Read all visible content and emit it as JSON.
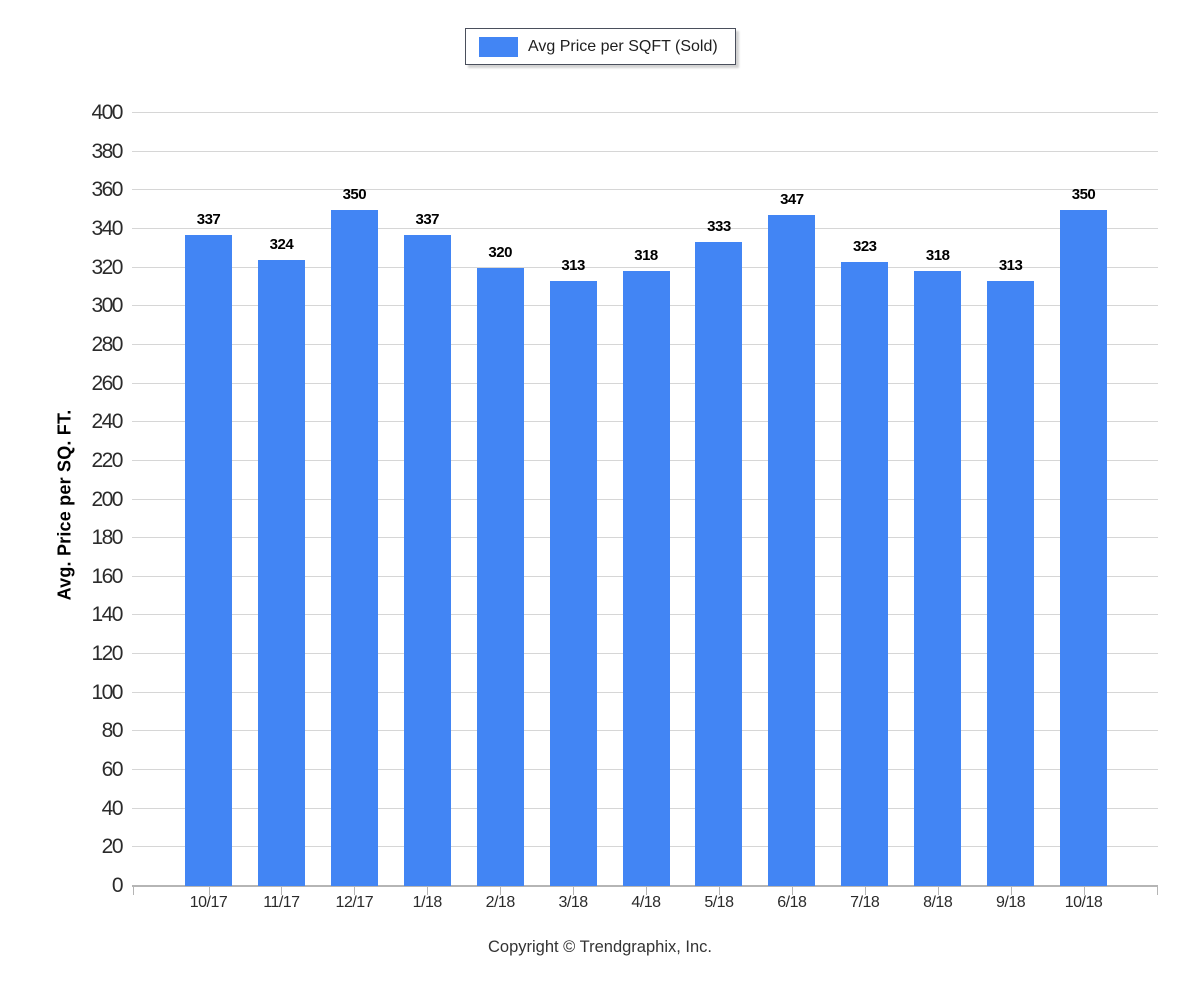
{
  "legend": {
    "label": "Avg Price per SQFT (Sold)"
  },
  "chart_data": {
    "type": "bar",
    "title": "",
    "series_name": "Avg Price per SQFT (Sold)",
    "categories": [
      "10/17",
      "11/17",
      "12/17",
      "1/18",
      "2/18",
      "3/18",
      "4/18",
      "5/18",
      "6/18",
      "7/18",
      "8/18",
      "9/18",
      "10/18"
    ],
    "values": [
      337,
      324,
      350,
      337,
      320,
      313,
      318,
      333,
      347,
      323,
      318,
      313,
      350
    ],
    "xlabel": "",
    "ylabel": "Avg. Price per SQ. FT.",
    "ylim": [
      0,
      400
    ],
    "ytick_step": 20,
    "grid": true,
    "legend_position": "top-center",
    "data_labels": true,
    "colors": {
      "bar": "#4285F4",
      "gridline": "#D6D6D6",
      "axis": "#B5B5B5"
    }
  },
  "footer": {
    "copyright": "Copyright © Trendgraphix, Inc."
  }
}
